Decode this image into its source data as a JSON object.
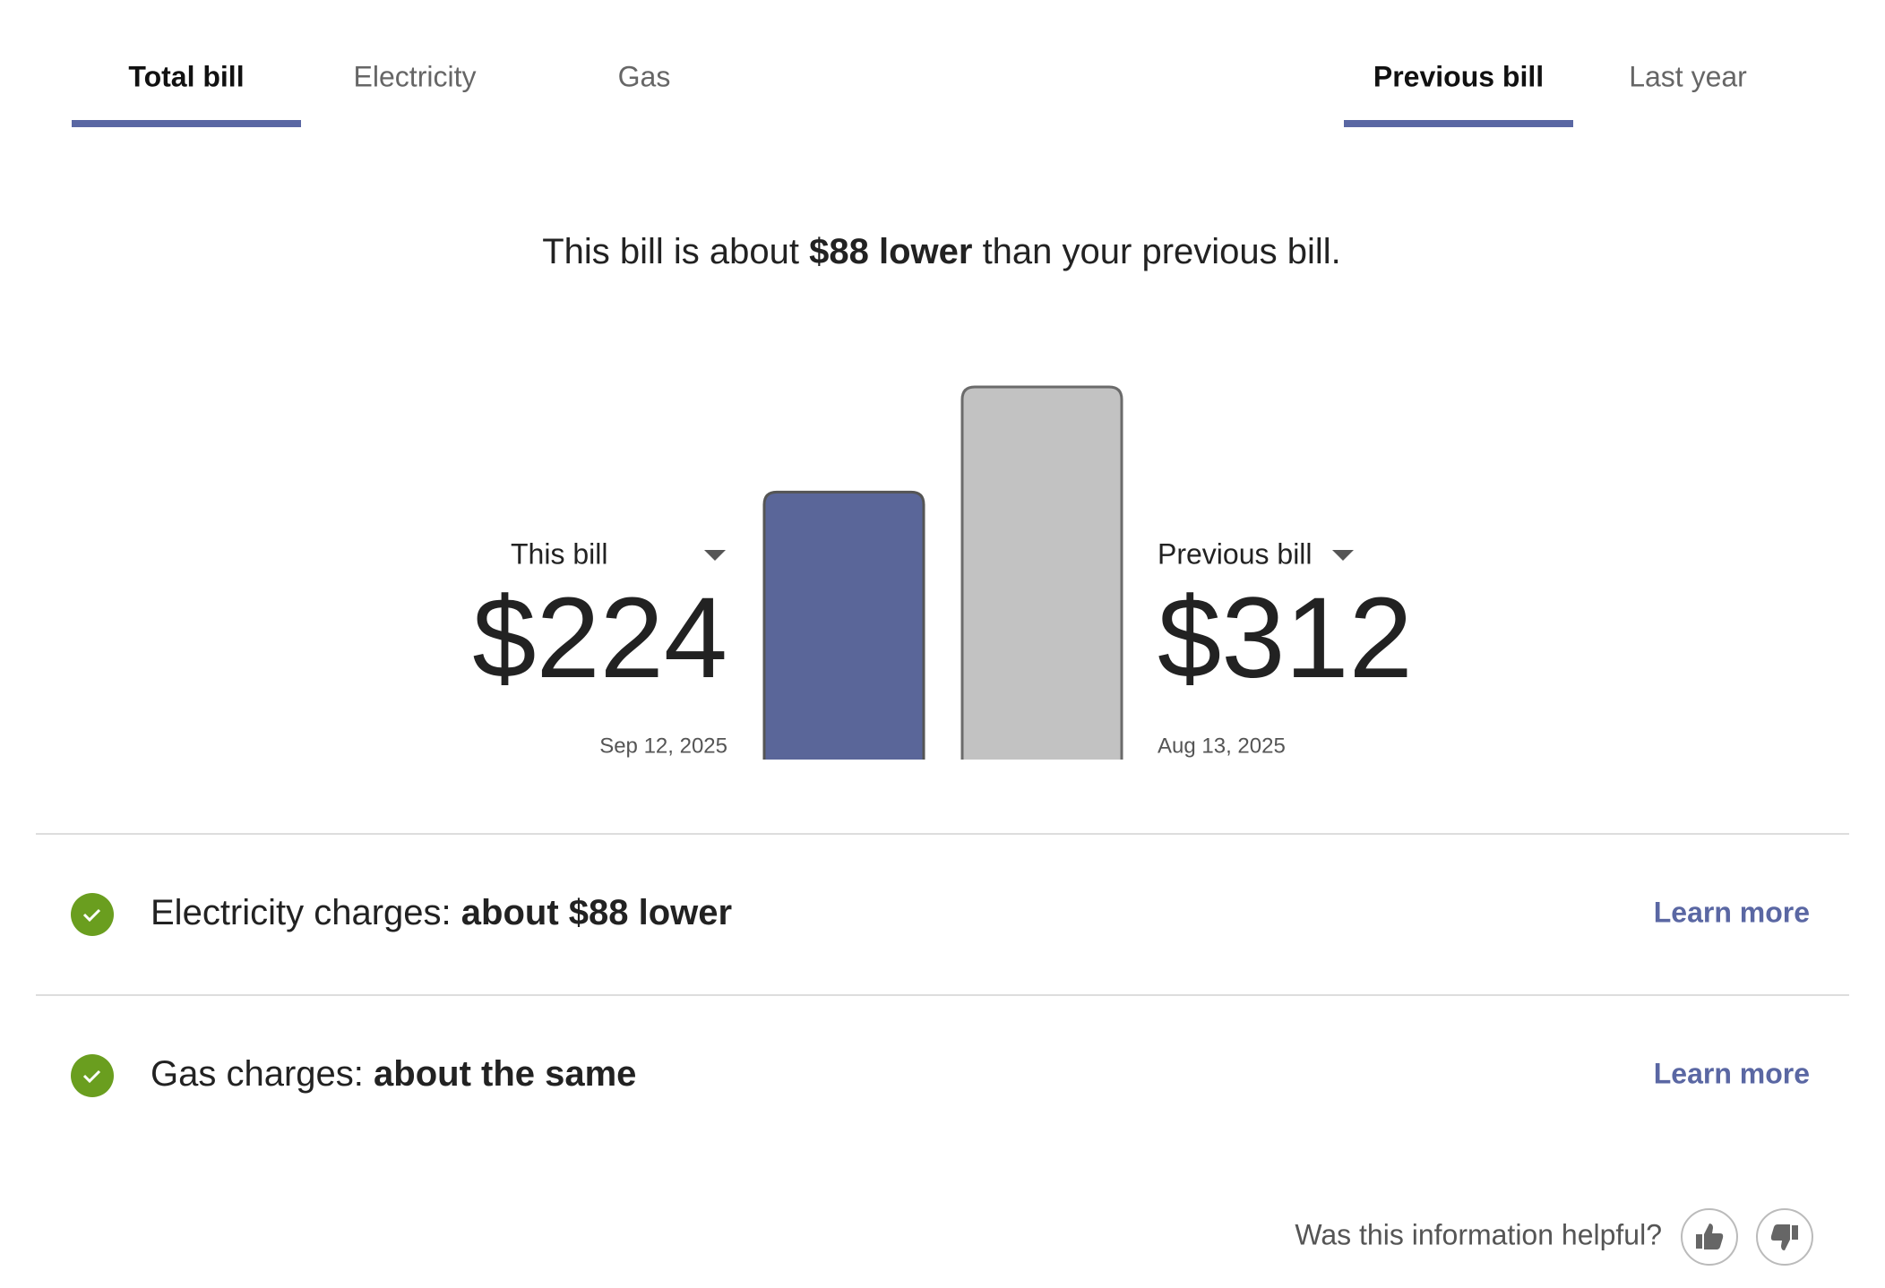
{
  "tabs": {
    "left": [
      {
        "label": "Total bill",
        "selected": true
      },
      {
        "label": "Electricity",
        "selected": false
      },
      {
        "label": "Gas",
        "selected": false
      }
    ],
    "right": [
      {
        "label": "Previous bill",
        "selected": true
      },
      {
        "label": "Last year",
        "selected": false
      }
    ]
  },
  "summary": {
    "before": "This bill is about ",
    "emphasis": "$88 lower",
    "after": " than your previous bill."
  },
  "chart_data": {
    "type": "bar",
    "categories": [
      "This bill",
      "Previous bill"
    ],
    "values": [
      224,
      312
    ],
    "value_labels": [
      "$224",
      "$312"
    ],
    "dates": [
      "Sep 12, 2025",
      "Aug 13, 2025"
    ],
    "colors": [
      "#5a6699",
      "#c2c2c2"
    ]
  },
  "rows": [
    {
      "label": "Electricity charges: ",
      "status": "about $88 lower",
      "link": "Learn more"
    },
    {
      "label": "Gas charges: ",
      "status": "about the same",
      "link": "Learn more"
    }
  ],
  "feedback": {
    "question": "Was this information helpful?"
  }
}
